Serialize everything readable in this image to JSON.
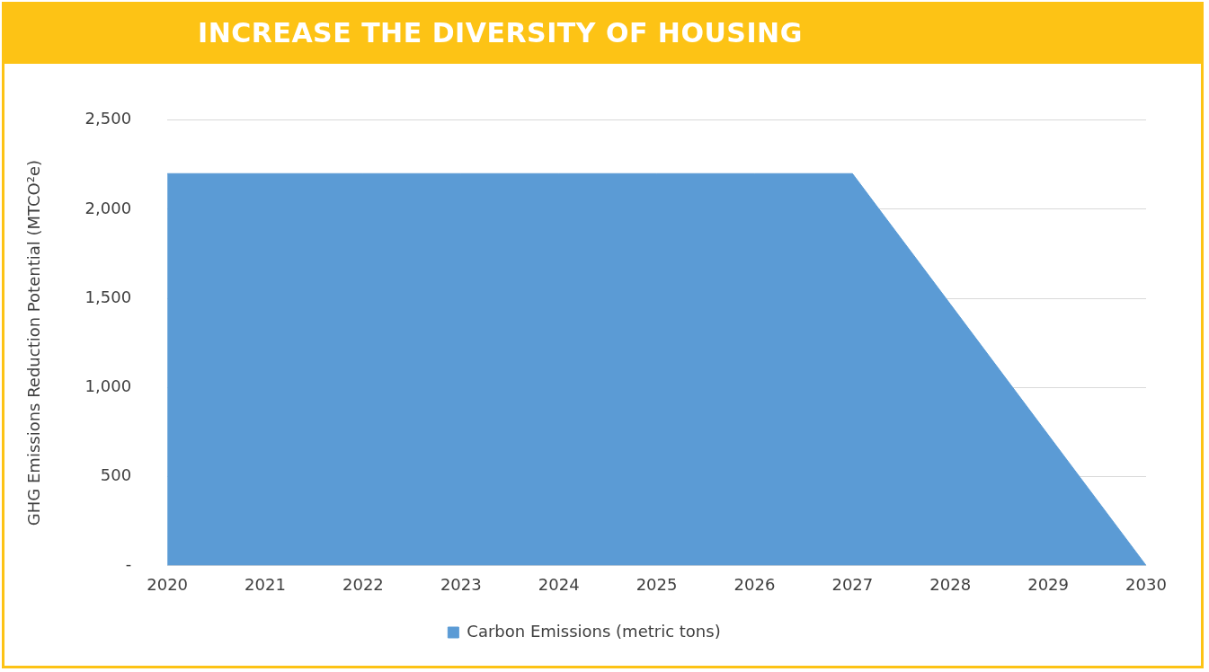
{
  "chart_data": {
    "type": "area",
    "title": "INCREASE THE DIVERSITY OF HOUSING",
    "ylabel": "GHG Emissions Reduction Potential (MTCO²e)",
    "categories": [
      "2020",
      "2021",
      "2022",
      "2023",
      "2024",
      "2025",
      "2026",
      "2027",
      "2028",
      "2029",
      "2030"
    ],
    "series": [
      {
        "name": "Carbon Emissions (metric tons)",
        "color": "#5b9bd5",
        "values": [
          2200,
          2200,
          2200,
          2200,
          2200,
          2200,
          2200,
          2200,
          1467,
          733,
          0
        ]
      }
    ],
    "ylim": [
      0,
      2500
    ],
    "yticks": [
      {
        "value": 0,
        "label": "-"
      },
      {
        "value": 500,
        "label": "500"
      },
      {
        "value": 1000,
        "label": "1,000"
      },
      {
        "value": 1500,
        "label": "1,500"
      },
      {
        "value": 2000,
        "label": "2,000"
      },
      {
        "value": 2500,
        "label": "2,500"
      }
    ],
    "grid": "y",
    "legend": "bottom",
    "marker": "none"
  }
}
